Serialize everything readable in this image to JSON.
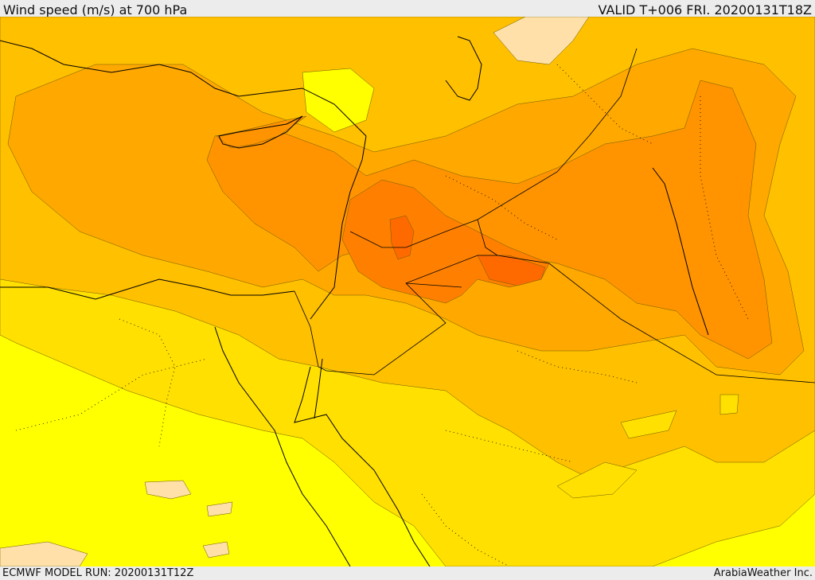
{
  "header": {
    "title": "Wind speed (m/s) at 700 hPa",
    "valid": "VALID T+006 FRI. 20200131T18Z"
  },
  "footer": {
    "model_run": "ECMWF MODEL RUN: 20200131T12Z",
    "credit": "ArabiaWeather Inc."
  },
  "colors": {
    "lightest": "#fee0a8",
    "yellow": "#ffff00",
    "gold": "#ffe000",
    "amber": "#ffc000",
    "orange_light": "#ffa800",
    "orange": "#ff9400",
    "orange_dark": "#ff8000",
    "red_orange": "#ff6a00",
    "coastline": "#000000",
    "border": "#000000"
  }
}
